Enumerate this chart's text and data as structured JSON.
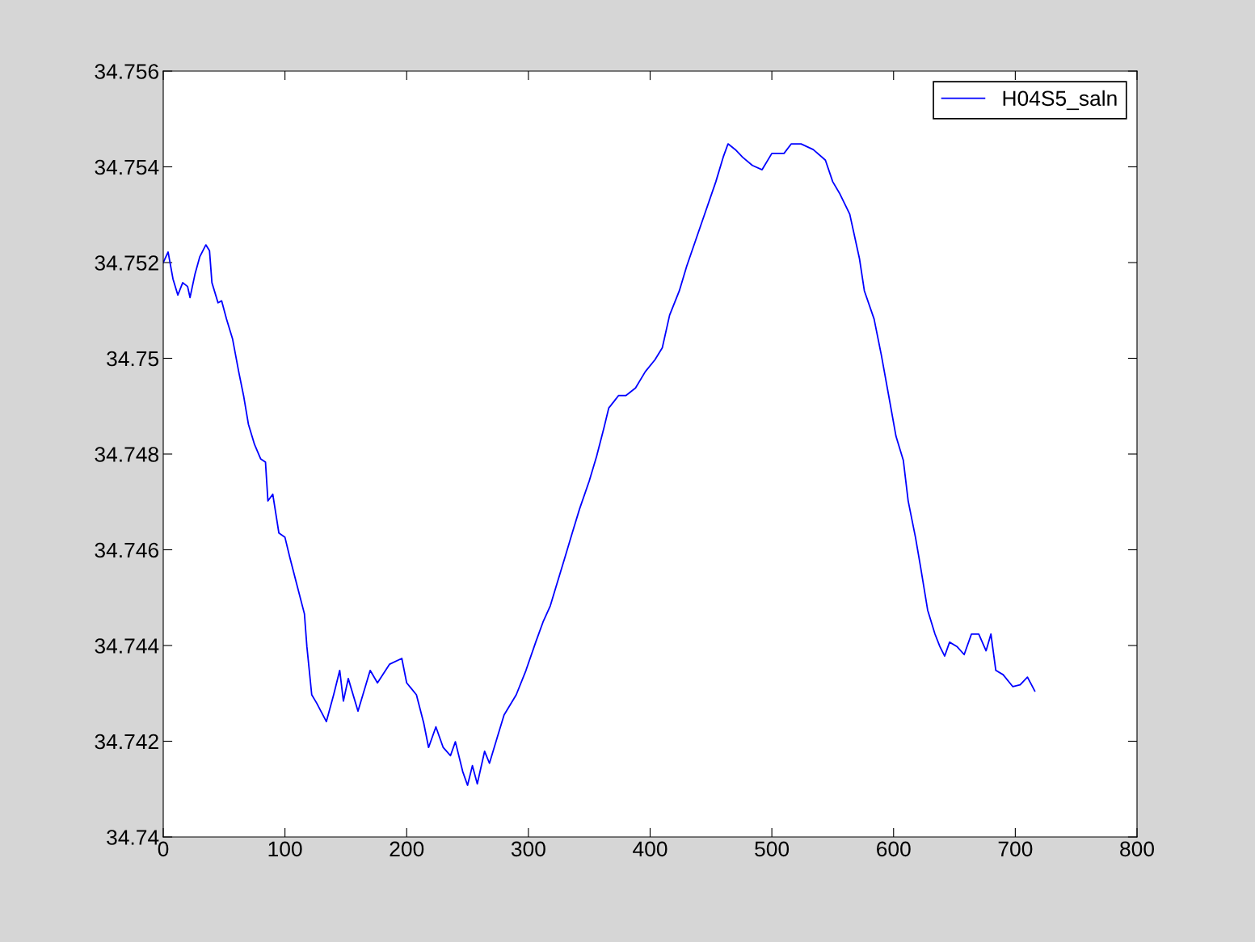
{
  "chart_data": {
    "type": "line",
    "x": [
      0,
      4,
      8,
      12,
      16,
      20,
      22,
      26,
      30,
      35,
      38,
      40,
      45,
      48,
      52,
      57,
      62,
      66,
      70,
      75,
      80,
      84,
      86,
      90,
      95,
      100,
      104,
      110,
      116,
      118,
      122,
      126,
      134,
      140,
      145,
      148,
      152,
      160,
      166,
      170,
      176,
      186,
      196,
      200,
      208,
      214,
      218,
      224,
      230,
      236,
      240,
      246,
      250,
      254,
      258,
      264,
      268,
      275,
      280,
      290,
      298,
      306,
      312,
      318,
      322,
      330,
      336,
      342,
      350,
      356,
      362,
      366,
      374,
      380,
      388,
      396,
      404,
      410,
      416,
      424,
      430,
      438,
      446,
      454,
      460,
      464,
      470,
      476,
      484,
      492,
      500,
      510,
      516,
      524,
      534,
      544,
      550,
      556,
      564,
      572,
      576,
      584,
      590,
      596,
      602,
      608,
      612,
      618,
      622,
      628,
      634,
      638,
      642,
      646,
      652,
      658,
      664,
      670,
      676,
      680,
      684,
      690,
      698,
      704,
      710,
      716
    ],
    "series": [
      {
        "name": "H04S5_saln",
        "color": "#0000ff",
        "values": [
          34.752,
          34.75222,
          34.75166,
          34.75132,
          34.75158,
          34.7515,
          34.75127,
          34.75175,
          34.75212,
          34.75237,
          34.75225,
          34.75158,
          34.75116,
          34.7512,
          34.75082,
          34.7504,
          34.74972,
          34.74922,
          34.74862,
          34.7482,
          34.7479,
          34.74783,
          34.74702,
          34.74716,
          34.74635,
          34.74626,
          34.74584,
          34.74525,
          34.74466,
          34.74398,
          34.74297,
          34.7428,
          34.74241,
          34.74297,
          34.74348,
          34.74284,
          34.74331,
          34.74263,
          34.74314,
          34.74348,
          34.74322,
          34.74361,
          34.74373,
          34.74322,
          34.74297,
          34.74238,
          34.74187,
          34.7423,
          34.74187,
          34.7417,
          34.74199,
          34.74137,
          34.74108,
          34.74149,
          34.74111,
          34.74179,
          34.74154,
          34.74213,
          34.74255,
          34.74297,
          34.74348,
          34.74407,
          34.74449,
          34.74483,
          34.74517,
          34.74584,
          34.74635,
          34.74685,
          34.74744,
          34.74795,
          34.74854,
          34.74896,
          34.74922,
          34.74922,
          34.74938,
          34.74972,
          34.74997,
          34.75022,
          34.7509,
          34.75141,
          34.75192,
          34.75251,
          34.7531,
          34.75369,
          34.7542,
          34.75448,
          34.75436,
          34.7542,
          34.75403,
          34.75394,
          34.75428,
          34.75428,
          34.75448,
          34.75448,
          34.75436,
          34.75414,
          34.75369,
          34.75343,
          34.75301,
          34.75208,
          34.75141,
          34.75082,
          34.75006,
          34.74922,
          34.74837,
          34.74787,
          34.74702,
          34.74626,
          34.74567,
          34.74474,
          34.74424,
          34.74398,
          34.74378,
          34.74407,
          34.74398,
          34.74381,
          34.74424,
          34.74424,
          34.74389,
          34.74424,
          34.74348,
          34.74339,
          34.74314,
          34.74318,
          34.74334,
          34.74305
        ]
      }
    ],
    "xlim": [
      0,
      800
    ],
    "xticks": [
      0,
      100,
      200,
      300,
      400,
      500,
      600,
      700,
      800
    ],
    "ylim": [
      34.74,
      34.756
    ],
    "yticks": [
      {
        "value": 34.74,
        "label": "34.74"
      },
      {
        "value": 34.742,
        "label": "34.742"
      },
      {
        "value": 34.744,
        "label": "34.744"
      },
      {
        "value": 34.746,
        "label": "34.746"
      },
      {
        "value": 34.748,
        "label": "34.748"
      },
      {
        "value": 34.75,
        "label": "34.75"
      },
      {
        "value": 34.752,
        "label": "34.752"
      },
      {
        "value": 34.754,
        "label": "34.754"
      },
      {
        "value": 34.756,
        "label": "34.756"
      }
    ],
    "legend": "top right",
    "grid": false,
    "marker": "none",
    "line_style": "solid"
  }
}
